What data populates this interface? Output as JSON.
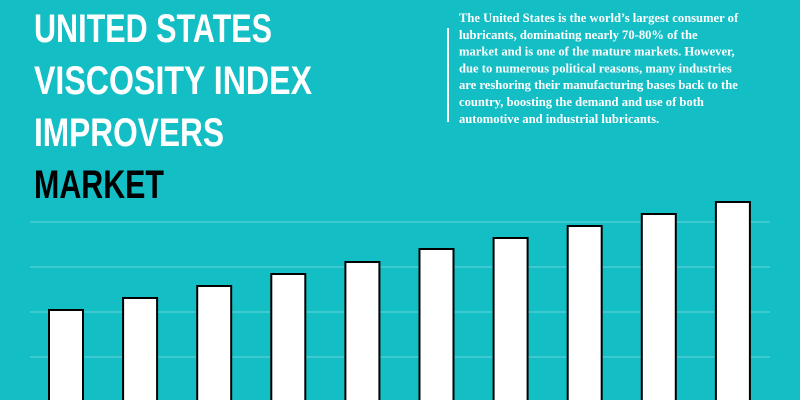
{
  "chart_data": {
    "type": "bar",
    "title_lines": [
      "UNITED STATES",
      "VISCOSITY INDEX",
      "IMPROVERS"
    ],
    "title_highlight": "MARKET",
    "description_lines": [
      "The United States is the world’s largest consumer of",
      "lubricants, dominating nearly 70-80% of the",
      "market and is one of the mature markets. However,",
      "due to numerous political reasons, many industries",
      "are reshoring their manufacturing bases back to the",
      "country, boosting the demand and use of both",
      "automotive and industrial lubricants."
    ],
    "values": [
      90,
      102,
      114,
      126,
      138,
      151,
      162,
      174,
      186,
      198
    ],
    "color": "#ffffff",
    "ylim": [
      0,
      400
    ]
  }
}
